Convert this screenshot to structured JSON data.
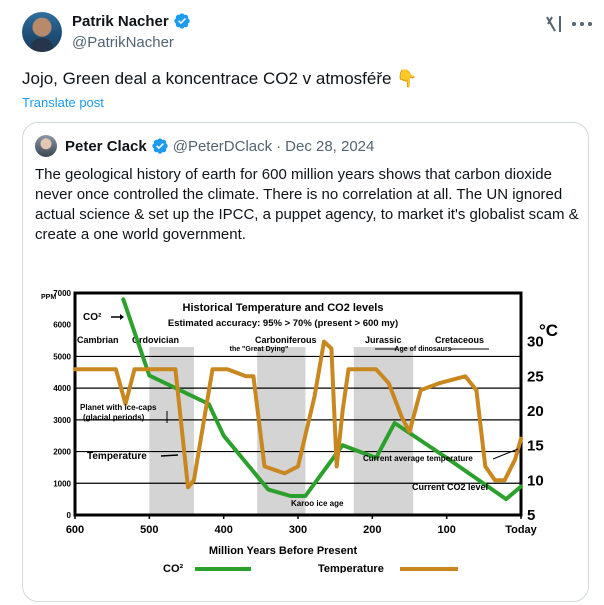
{
  "post": {
    "author_name": "Patrik Nacher",
    "author_handle": "@PatrikNacher",
    "text": "Jojo, Green deal a koncentrace CO2 v atmosféře 👇",
    "translate_label": "Translate post",
    "icons": [
      "verified-badge-icon",
      "grok-icon",
      "more-icon"
    ],
    "colors": {
      "link": "#1d9bf0",
      "verified": "#1d9bf0",
      "secondary_text": "#536471"
    }
  },
  "quote": {
    "author_name": "Peter Clack",
    "author_handle": "@PeterDClack",
    "separator": "·",
    "date": "Dec 28, 2024",
    "text": "The geological history of earth for 600 million years shows that carbon dioxide never once controlled the climate. There is no correlation at all. The UN ignored actual science & set up the IPCC, a puppet agency, to market it's globalist scam & create a one world government."
  },
  "chart_data": {
    "type": "line",
    "title": "Historical Temperature and CO2 levels",
    "subtitle": "Estimated accuracy: 95% > 70% (present > 600 my)",
    "xlabel": "Million Years Before Present",
    "left_axis_unit": "PPM",
    "right_axis_unit": "°C",
    "xlim": [
      600,
      0
    ],
    "ylim_left": [
      0,
      7000
    ],
    "ylim_right": [
      5,
      37
    ],
    "x_ticks": [
      "600",
      "500",
      "400",
      "300",
      "200",
      "100",
      "Today"
    ],
    "x_tick_values": [
      600,
      500,
      400,
      300,
      200,
      100,
      0
    ],
    "y_left_ticks": [
      "0",
      "1000",
      "2000",
      "3000",
      "4000",
      "5000",
      "6000",
      "7000"
    ],
    "y_left_tick_values": [
      0,
      1000,
      2000,
      3000,
      4000,
      5000,
      6000,
      7000
    ],
    "y_right_ticks": [
      "5",
      "10",
      "15",
      "20",
      "25",
      "30"
    ],
    "y_right_tick_values": [
      5,
      10,
      15,
      20,
      25,
      30
    ],
    "periods": [
      "Cambrian",
      "Ordovician",
      "Carboniferous",
      "Jurassic",
      "Cretaceous"
    ],
    "shaded_bands": [
      [
        500,
        440
      ],
      [
        355,
        290
      ],
      [
        225,
        145
      ]
    ],
    "annotations": {
      "co2_marker": "CO²",
      "great_dying": "the \"Great Dying\"",
      "dinosaurs": "Age of dinosaurs",
      "ice_caps_1": "Planet with ice-caps",
      "ice_caps_2": "(glacial periods)",
      "temperature_marker": "Temperature",
      "current_avg_temp": "Current average temperature",
      "karoo": "Karoo ice age",
      "current_co2": "Current CO2 level"
    },
    "series": [
      {
        "name": "CO²",
        "color": "#2ca02c",
        "axis": "left",
        "x": [
          535,
          500,
          420,
          400,
          340,
          310,
          290,
          240,
          195,
          170,
          100,
          20,
          0
        ],
        "y": [
          6800,
          4400,
          3500,
          2500,
          800,
          600,
          600,
          2200,
          1800,
          2900,
          1800,
          500,
          900
        ]
      },
      {
        "name": "Temperature",
        "color": "#c8871f",
        "axis": "right",
        "x": [
          600,
          545,
          532,
          520,
          500,
          465,
          448,
          440,
          415,
          395,
          370,
          360,
          345,
          318,
          300,
          278,
          265,
          255,
          248,
          240,
          232,
          222,
          195,
          178,
          160,
          150,
          135,
          110,
          75,
          60,
          48,
          35,
          22,
          8,
          0
        ],
        "y": [
          26,
          26,
          21,
          26,
          26,
          26,
          9,
          10,
          26,
          26,
          25,
          25,
          12,
          11,
          12,
          22,
          30,
          29,
          12,
          20,
          26,
          26,
          26,
          24,
          19,
          17,
          23,
          24,
          25,
          23,
          12,
          10,
          10,
          13,
          16
        ]
      }
    ]
  }
}
